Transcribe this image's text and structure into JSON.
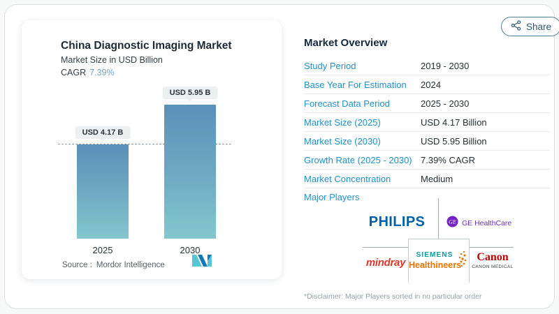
{
  "page": {
    "share_label": "Share"
  },
  "chart_card": {
    "title": "China Diagnostic Imaging Market",
    "subtitle": "Market Size in USD Billion",
    "cagr_label": "CAGR",
    "cagr_value": "7.39%",
    "source_label": "Source :",
    "source_name": "Mordor Intelligence"
  },
  "chart_data": {
    "type": "bar",
    "title": "China Diagnostic Imaging Market",
    "ylabel": "Market Size in USD Billion",
    "categories": [
      "2025",
      "2030"
    ],
    "values": [
      4.17,
      5.95
    ],
    "value_labels": [
      "USD 4.17 B",
      "USD 5.95 B"
    ],
    "unit": "USD Billion",
    "ylim": [
      0,
      7
    ],
    "grid": false,
    "legend": "none",
    "reference_line": {
      "value": 4.17,
      "style": "dashed"
    },
    "bar_gradient_top": "#5b90b8",
    "bar_gradient_bottom": "#83c7cd"
  },
  "overview": {
    "heading": "Market Overview",
    "rows": [
      {
        "label": "Study Period",
        "value": "2019 - 2030"
      },
      {
        "label": "Base Year For Estimation",
        "value": "2024"
      },
      {
        "label": "Forecast Data Period",
        "value": "2025 - 2030"
      },
      {
        "label": "Market Size (2025)",
        "value": "USD 4.17 Billion"
      },
      {
        "label": "Market Size (2030)",
        "value": "USD 5.95 Billion"
      },
      {
        "label": "Growth Rate (2025 - 2030)",
        "value": "7.39% CAGR"
      },
      {
        "label": "Market Concentration",
        "value": "Medium"
      }
    ],
    "major_players_label": "Major Players",
    "players": {
      "philips": "PHILIPS",
      "ge_monogram": "GE",
      "ge": "GE HealthCare",
      "mindray": "mindray",
      "siemens_line1": "SIEMENS",
      "siemens_line2": "Healthineers",
      "canon": "Canon",
      "canon_sub": "CANON MEDICAL"
    },
    "disclaimer": "*Disclaimer: Major Players sorted in no particular order",
    "label_color": "#2191c9"
  }
}
